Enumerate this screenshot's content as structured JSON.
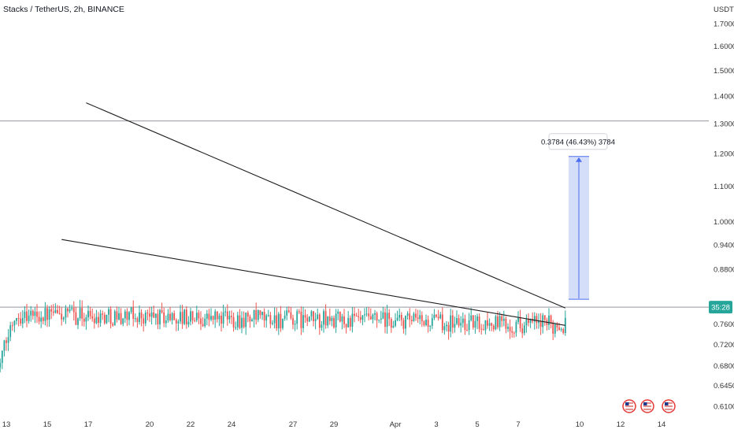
{
  "header": {
    "title": "Stacks / TetherUS, 2h, BINANCE",
    "unit": "USDT"
  },
  "badge": {
    "label": "35:28",
    "price": 0.7955
  },
  "colors": {
    "up": "#26a69a",
    "down": "#ef5350",
    "trend": "#1e1e1e",
    "measure_fill": "#c5d3f7",
    "measure_line": "#4b6ff0",
    "badge": "#26a69a",
    "hline": "#9598a1"
  },
  "chart_data": {
    "type": "candlestick",
    "title": "Stacks / TetherUS, 2h, BINANCE",
    "ylabel": "USDT",
    "y_scale": "log",
    "ylim": [
      0.605,
      1.78
    ],
    "y_ticks": [
      "1.7000",
      "1.6000",
      "1.5000",
      "1.4000",
      "1.3000",
      "1.2000",
      "1.1000",
      "1.0000",
      "0.9400",
      "0.8800",
      "0.7600",
      "0.7200",
      "0.6800",
      "0.6450",
      "0.6100"
    ],
    "x_ticks": [
      "13",
      "15",
      "17",
      "20",
      "22",
      "24",
      "27",
      "29",
      "Apr",
      "3",
      "5",
      "7",
      "10",
      "12",
      "14"
    ],
    "hlines": [
      1.31,
      0.7955
    ],
    "trendlines": [
      {
        "from": {
          "x": "16.9",
          "y": 1.375
        },
        "to": {
          "x": "9.3",
          "y": 0.7935
        }
      },
      {
        "from": {
          "x": "15.7",
          "y": 0.9535
        },
        "to": {
          "x": "9.3",
          "y": 0.7575
        }
      }
    ],
    "measure": {
      "label": "0.3784 (46.43%) 3784",
      "from_price": 0.8125,
      "to_price": 1.1909
    },
    "price_path": [
      {
        "x": "12.5",
        "price": 0.66
      },
      {
        "x": "13.4",
        "price": 0.78
      },
      {
        "x": "14",
        "price": 0.755
      },
      {
        "x": "14.4",
        "price": 0.81
      },
      {
        "x": "14.8",
        "price": 0.94
      },
      {
        "x": "15.2",
        "price": 1.05
      },
      {
        "x": "15.5",
        "price": 0.97
      },
      {
        "x": "15.7",
        "price": 0.83
      },
      {
        "x": "16.1",
        "price": 0.88
      },
      {
        "x": "16.8",
        "price": 0.885
      },
      {
        "x": "17.2",
        "price": 0.97
      },
      {
        "x": "17.6",
        "price": 1.03
      },
      {
        "x": "17.9",
        "price": 1.17
      },
      {
        "x": "18.2",
        "price": 1.27
      },
      {
        "x": "18.8",
        "price": 1.21
      },
      {
        "x": "19.6",
        "price": 1.22
      },
      {
        "x": "20.1",
        "price": 1.24
      },
      {
        "x": "20.3",
        "price": 1.3
      },
      {
        "x": "20.8",
        "price": 1.2
      },
      {
        "x": "21.4",
        "price": 1.16
      },
      {
        "x": "21.9",
        "price": 1.11
      },
      {
        "x": "22.5",
        "price": 1.17
      },
      {
        "x": "23.2",
        "price": 1.16
      },
      {
        "x": "23.8",
        "price": 1.19
      },
      {
        "x": "24.2",
        "price": 1.16
      },
      {
        "x": "24.8",
        "price": 1.07
      },
      {
        "x": "25.3",
        "price": 0.98
      },
      {
        "x": "25.8",
        "price": 0.96
      },
      {
        "x": "26.3",
        "price": 0.91
      },
      {
        "x": "26.8",
        "price": 0.93
      },
      {
        "x": "27.1",
        "price": 0.98
      },
      {
        "x": "27.5",
        "price": 0.965
      },
      {
        "x": "27.9",
        "price": 0.895
      },
      {
        "x": "28.4",
        "price": 0.87
      },
      {
        "x": "28.9",
        "price": 0.91
      },
      {
        "x": "29.2",
        "price": 1.02
      },
      {
        "x": "29.6",
        "price": 1.0
      },
      {
        "x": "30.2",
        "price": 0.94
      },
      {
        "x": "30.8",
        "price": 0.93
      },
      {
        "x": "Apr",
        "price": 0.9
      },
      {
        "x": "1.7",
        "price": 0.875
      },
      {
        "x": "2.3",
        "price": 0.88
      },
      {
        "x": "3",
        "price": 0.91
      },
      {
        "x": "3.5",
        "price": 0.87
      },
      {
        "x": "4.3",
        "price": 0.86
      },
      {
        "x": "4.9",
        "price": 0.885
      },
      {
        "x": "5.4",
        "price": 0.87
      },
      {
        "x": "5.8",
        "price": 0.835
      },
      {
        "x": "6.2",
        "price": 0.8
      },
      {
        "x": "6.8",
        "price": 0.795
      },
      {
        "x": "7.3",
        "price": 0.785
      },
      {
        "x": "7.7",
        "price": 0.77
      },
      {
        "x": "8.2",
        "price": 0.8
      },
      {
        "x": "8.8",
        "price": 0.795
      },
      {
        "x": "9.2",
        "price": 0.775
      },
      {
        "x": "9.35",
        "price": 0.81
      }
    ]
  }
}
